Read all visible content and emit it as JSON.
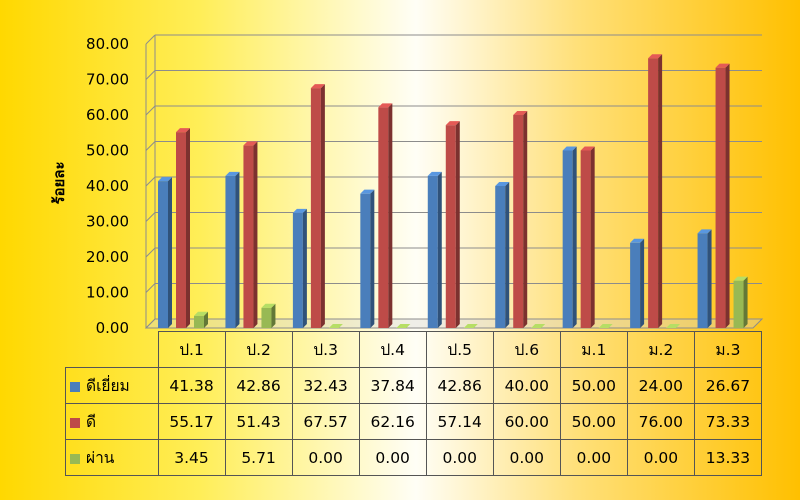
{
  "chart_data": {
    "type": "bar",
    "categories": [
      "ป.1",
      "ป.2",
      "ป.3",
      "ป.4",
      "ป.5",
      "ป.6",
      "ม.1",
      "ม.2",
      "ม.3"
    ],
    "series": [
      {
        "name": "ดีเยี่ยม",
        "color": "#4a7ebb",
        "values": [
          41.38,
          42.86,
          32.43,
          37.84,
          42.86,
          40.0,
          50.0,
          24.0,
          26.67
        ],
        "labels": [
          "41.38",
          "42.86",
          "32.43",
          "37.84",
          "42.86",
          "40.00",
          "50.00",
          "24.00",
          "26.67"
        ]
      },
      {
        "name": "ดี",
        "color": "#be4b48",
        "values": [
          55.17,
          51.43,
          67.57,
          62.16,
          57.14,
          60.0,
          50.0,
          76.0,
          73.33
        ],
        "labels": [
          "55.17",
          "51.43",
          "67.57",
          "62.16",
          "57.14",
          "60.00",
          "50.00",
          "76.00",
          "73.33"
        ]
      },
      {
        "name": "ผ่าน",
        "color": "#98b954",
        "values": [
          3.45,
          5.71,
          0.0,
          0.0,
          0.0,
          0.0,
          0.0,
          0.0,
          13.33
        ],
        "labels": [
          "3.45",
          "5.71",
          "0.00",
          "0.00",
          "0.00",
          "0.00",
          "0.00",
          "0.00",
          "13.33"
        ]
      }
    ],
    "ylabel": "ร้อยละ",
    "ylim": [
      0,
      80
    ],
    "yticks": [
      "0.00",
      "10.00",
      "20.00",
      "30.00",
      "40.00",
      "50.00",
      "60.00",
      "70.00",
      "80.00"
    ],
    "grid": true,
    "legend": "data-table"
  }
}
